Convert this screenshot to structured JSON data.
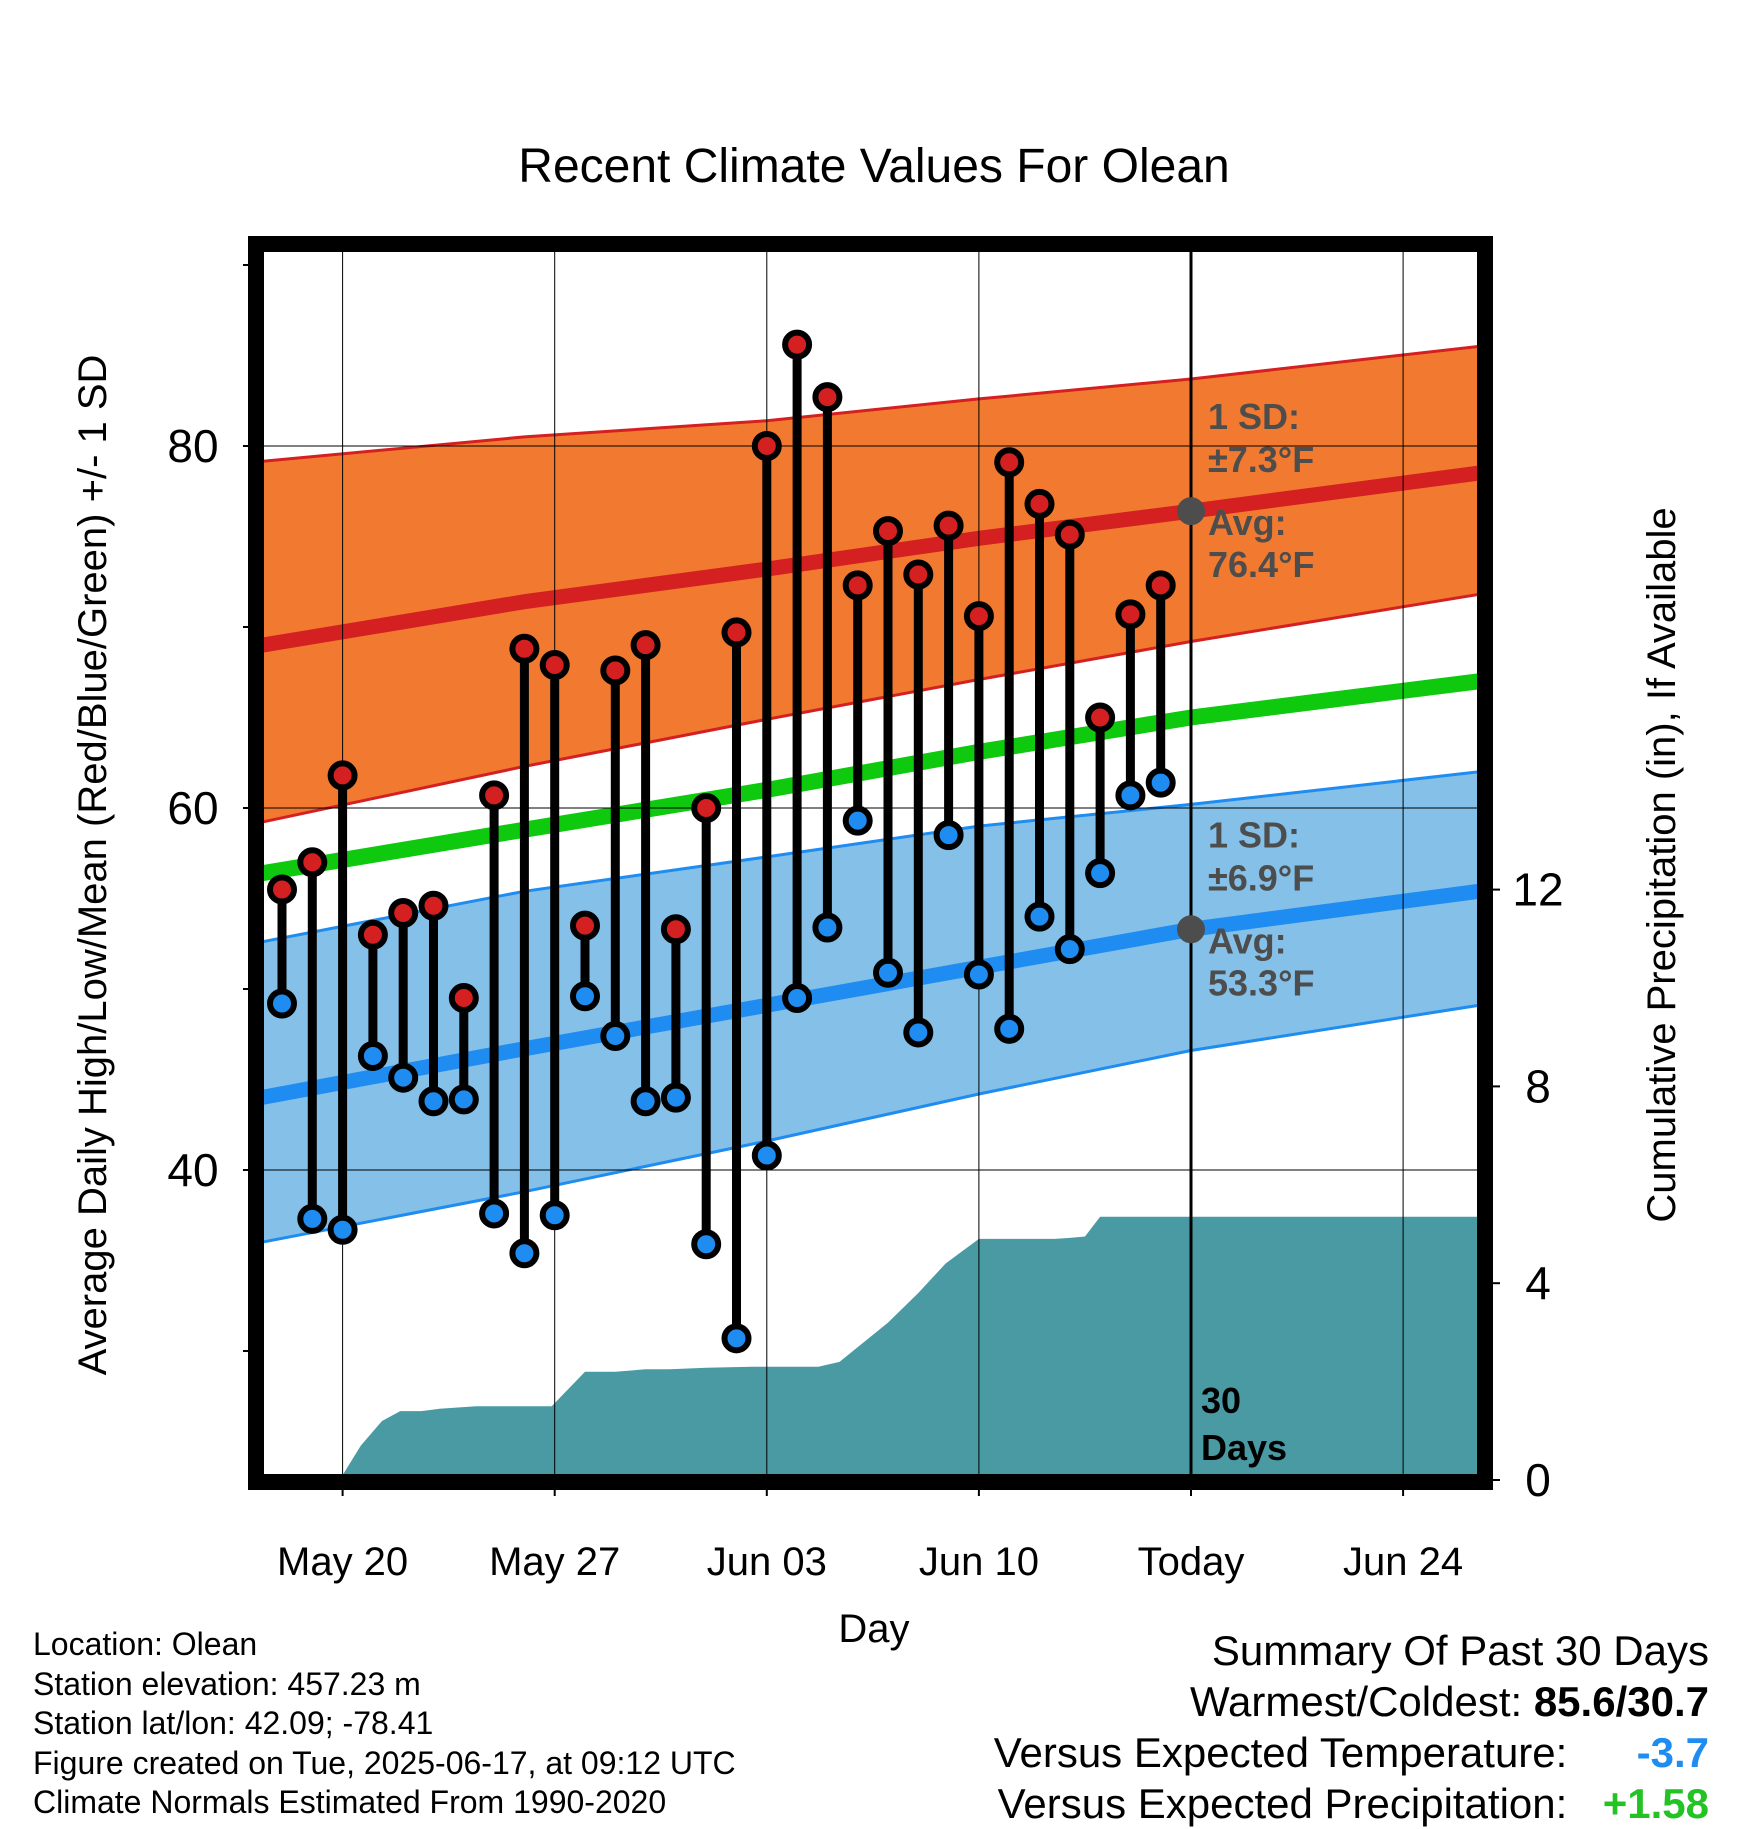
{
  "chart_data": {
    "type": "line",
    "title": "Recent Climate Values For Olean",
    "xlabel": "Day",
    "ylabel": "Average Daily High/Low/Mean (Red/Blue/Green) +/- 1 SD",
    "y2label": "Cumulative Precipitation (in), If Available",
    "x_tick_labels": [
      "May 20",
      "May 27",
      "Jun 03",
      "Jun 10",
      "Today",
      "Jun 24"
    ],
    "y_ticks": [
      "40",
      "60",
      "80"
    ],
    "y2_ticks": [
      "0",
      "4",
      "8",
      "12"
    ],
    "ylim": [
      23.2,
      91
    ],
    "y2lim": [
      0,
      24
    ],
    "x_range_days_relative_to_today": [
      -31,
      9.6
    ],
    "today_marker_label": "30 Days",
    "normals": {
      "x_days_relative_to_today": [
        -31,
        -22,
        -14,
        -7,
        0,
        9.5
      ],
      "high_avg": [
        68.9,
        71.4,
        73.2,
        74.9,
        76.4,
        78.5
      ],
      "high_sd_upper": [
        79.1,
        80.5,
        81.4,
        82.6,
        83.7,
        85.5
      ],
      "high_sd_lower": [
        59.1,
        62.3,
        64.9,
        67.1,
        69.2,
        71.8
      ],
      "low_avg": [
        43.9,
        46.7,
        49.1,
        51.2,
        53.3,
        55.4
      ],
      "low_sd_upper": [
        52.5,
        55.4,
        57.3,
        59.0,
        60.2,
        62.0
      ],
      "low_sd_lower": [
        35.9,
        38.8,
        41.6,
        44.2,
        46.6,
        49.1
      ],
      "mean_avg": [
        56.3,
        58.8,
        61.0,
        63.1,
        65.0,
        67.0
      ]
    },
    "annotations": {
      "high_sd": "1 SD:",
      "high_sd_value": "±7.3°F",
      "high_avg_label": "Avg:",
      "high_avg_value": "76.4°F",
      "low_sd": "1 SD:",
      "low_sd_value": "±6.9°F",
      "low_avg_label": "Avg:",
      "low_avg_value": "53.3°F",
      "today_high_avg": 76.4,
      "today_low_avg": 53.3
    },
    "daily": {
      "x_days_relative_to_today": [
        -30,
        -29,
        -28,
        -27,
        -26,
        -25,
        -24,
        -23,
        -22,
        -21,
        -20,
        -19,
        -18,
        -17,
        -16,
        -15,
        -14,
        -13,
        -12,
        -11,
        -10,
        -9,
        -8,
        -7,
        -6,
        -5,
        -4,
        -3,
        -2,
        -1
      ],
      "high": [
        55.5,
        57.0,
        61.8,
        53.0,
        54.2,
        54.6,
        49.5,
        60.7,
        68.8,
        67.9,
        53.5,
        67.6,
        69.0,
        53.3,
        60.0,
        69.7,
        80.0,
        85.6,
        82.7,
        72.3,
        75.3,
        72.9,
        75.6,
        70.6,
        79.1,
        76.8,
        75.1,
        65.0,
        70.7,
        72.3
      ],
      "low": [
        49.2,
        37.3,
        36.7,
        46.3,
        45.1,
        43.8,
        43.9,
        37.6,
        35.4,
        37.5,
        49.6,
        47.4,
        43.8,
        44.0,
        35.9,
        30.7,
        40.8,
        49.5,
        53.4,
        59.3,
        50.9,
        47.6,
        58.5,
        50.8,
        47.8,
        54.0,
        52.2,
        56.4,
        60.7,
        61.4
      ]
    },
    "precip_cumulative": {
      "x_days_relative_to_today": [
        -28.1,
        -27.4,
        -26.7,
        -26.1,
        -25.4,
        -24.8,
        -23.6,
        -23,
        -22,
        -21.1,
        -20,
        -19,
        -18,
        -17.2,
        -16,
        -14.5,
        -13.5,
        -12.3,
        -11.6,
        -10,
        -9,
        -8.1,
        -7,
        -6.5,
        -5.7,
        -4.5,
        -4,
        -3.5,
        -3,
        -1,
        0,
        9.6
      ],
      "values": [
        0,
        0.7,
        1.2,
        1.4,
        1.4,
        1.45,
        1.5,
        1.5,
        1.5,
        1.5,
        2.2,
        2.2,
        2.25,
        2.25,
        2.28,
        2.3,
        2.3,
        2.3,
        2.4,
        3.2,
        3.8,
        4.4,
        4.9,
        4.9,
        4.9,
        4.9,
        4.92,
        4.95,
        5.35,
        5.35,
        5.35,
        5.35
      ]
    }
  },
  "footer": {
    "location": "Location: Olean",
    "elevation": "Station elevation: 457.23 m",
    "latlon": "Station lat/lon: 42.09; -78.41",
    "created": "Figure created on Tue, 2025-06-17, at 09:12 UTC",
    "normals": "Climate Normals Estimated From 1990-2020"
  },
  "summary": {
    "title": "Summary Of Past 30 Days",
    "warmest_label": "Warmest/Coldest:",
    "warmest_value": "85.6/30.7",
    "temp_label": "Versus Expected Temperature:",
    "temp_value": "-3.7",
    "precip_label": "Versus Expected Precipitation:",
    "precip_value": "+1.58"
  },
  "colors": {
    "high_band": "#f27a30",
    "high_line": "#d42020",
    "high_dot": "#d42020",
    "low_band": "#84c0e8",
    "low_line": "#1e8cf0",
    "low_dot": "#1e8cf0",
    "mean_line": "#0ec90e",
    "precip": "#4a9aa4",
    "annotation": "#4d4d4d",
    "frame": "#000000"
  }
}
